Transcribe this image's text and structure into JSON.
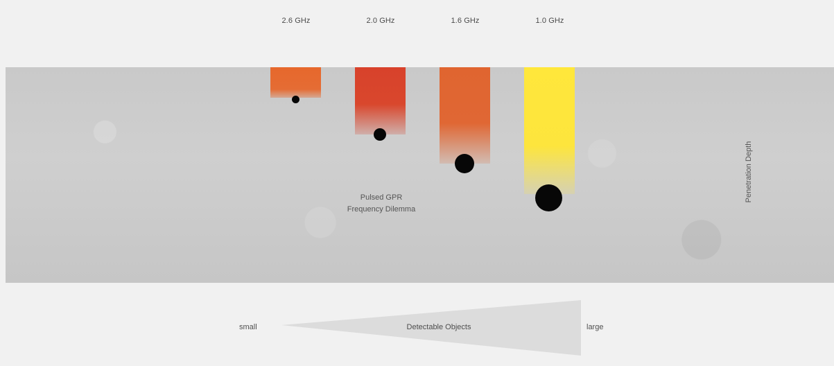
{
  "frequencies": [
    {
      "label": "2.6 GHz",
      "color": "#e6682c"
    },
    {
      "label": "2.0 GHz",
      "color": "#d8422b"
    },
    {
      "label": "1.6 GHz",
      "color": "#e06530"
    },
    {
      "label": "1.0 GHz",
      "color": "#ffe73b"
    }
  ],
  "center_text": {
    "line1": "Pulsed GPR",
    "line2": "Frequency Dilemma"
  },
  "side_label": "Penetration Depth",
  "bottom": {
    "small_label": "small",
    "center_label": "Detectable Objects",
    "large_label": "large"
  }
}
